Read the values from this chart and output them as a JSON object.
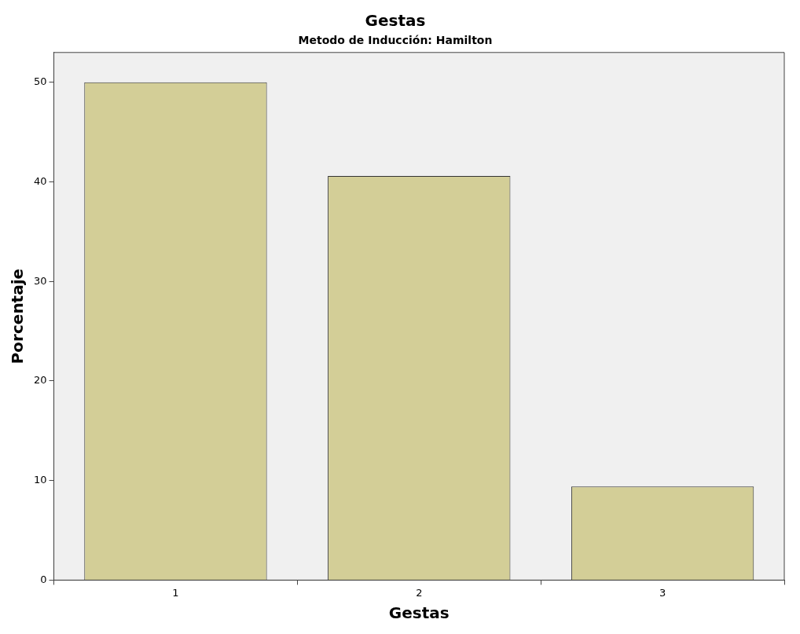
{
  "chart_data": {
    "type": "bar",
    "title": "Gestas",
    "subtitle": "Metodo de Inducción: Hamilton",
    "xlabel": "Gestas",
    "ylabel": "Porcentaje",
    "categories": [
      "1",
      "2",
      "3"
    ],
    "values": [
      50,
      40.6,
      9.4
    ],
    "color": "#d3ce97",
    "ylim": [
      0,
      53
    ],
    "yticks": [
      0,
      10,
      20,
      30,
      40,
      50
    ],
    "grid": false,
    "legend": false
  }
}
